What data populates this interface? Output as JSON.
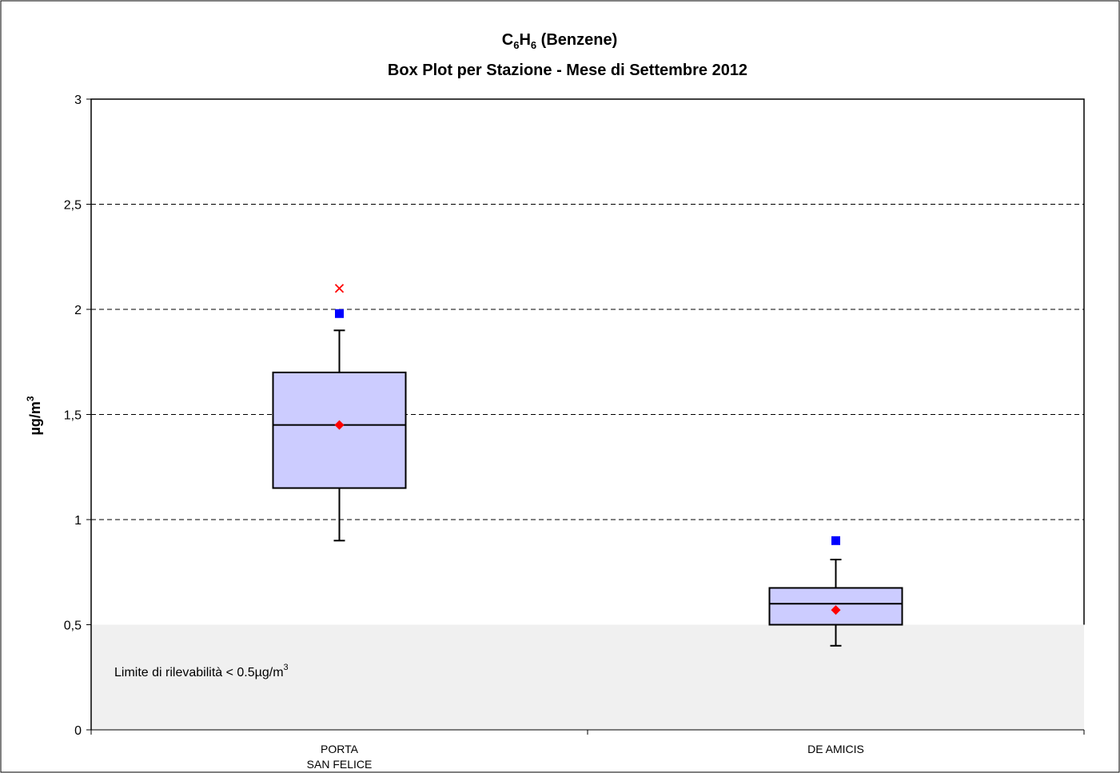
{
  "chart_data": {
    "type": "boxplot",
    "title_main": "C",
    "title_sub1": "6",
    "title_mid": "H",
    "title_sub2": "6",
    "title_rest": " (Benzene)",
    "subtitle": "Box Plot per Stazione - Mese di Settembre 2012",
    "ylabel": "µg/m",
    "ylabel_sup": "3",
    "ylim": [
      0,
      3
    ],
    "yticks": [
      0,
      0.5,
      1,
      1.5,
      2,
      2.5,
      3
    ],
    "ytick_labels": [
      "0",
      "0,5",
      "1",
      "1,5",
      "2",
      "2,5",
      "3"
    ],
    "grid": true,
    "categories": [
      {
        "line1": "PORTA",
        "line2": "SAN FELICE"
      },
      {
        "line1": "DE AMICIS",
        "line2": ""
      }
    ],
    "boxes": [
      {
        "whisker_low": 0.9,
        "q1": 1.15,
        "median": 1.45,
        "q3": 1.7,
        "whisker_high": 1.9,
        "mean": 1.45,
        "p98": 1.98,
        "max": 2.1
      },
      {
        "whisker_low": 0.4,
        "q1": 0.5,
        "median": 0.6,
        "q3": 0.675,
        "whisker_high": 0.81,
        "mean": 0.57,
        "p98": 0.9,
        "max": null
      }
    ],
    "detection_limit": 0.5,
    "detection_note": "Limite di rilevabilità < 0.5µg/m",
    "detection_note_sup": "3",
    "colors": {
      "box_fill": "#ccccff",
      "mean_marker": "#ff0000",
      "p98_marker": "#0000ff",
      "max_marker": "#ff0000",
      "limit_band": "#f0f0f0"
    }
  }
}
